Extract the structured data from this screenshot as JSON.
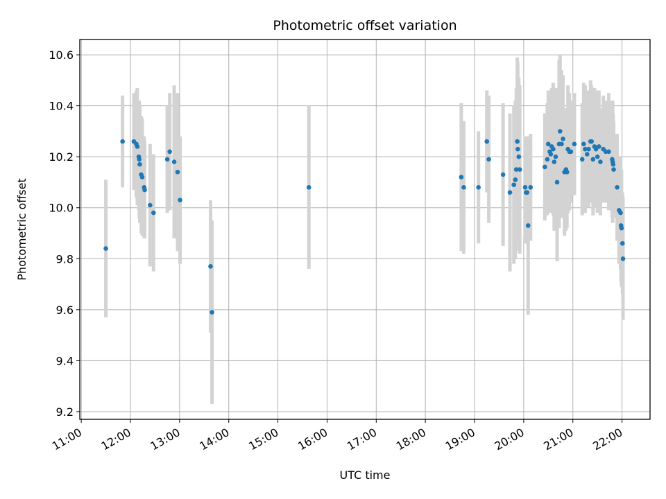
{
  "chart_data": {
    "type": "scatter",
    "title": "Photometric offset variation",
    "xlabel": "UTC time",
    "ylabel": "Photometric offset",
    "x_unit": "hour",
    "xlim": [
      10.97,
      22.57
    ],
    "ylim": [
      9.17,
      10.66
    ],
    "x_ticks": [
      11,
      12,
      13,
      14,
      15,
      16,
      17,
      18,
      19,
      20,
      21,
      22
    ],
    "x_tick_labels": [
      "11:00",
      "12:00",
      "13:00",
      "14:00",
      "15:00",
      "16:00",
      "17:00",
      "18:00",
      "19:00",
      "20:00",
      "21:00",
      "22:00"
    ],
    "y_ticks": [
      9.2,
      9.4,
      9.6,
      9.8,
      10.0,
      10.2,
      10.4,
      10.6
    ],
    "y_tick_labels": [
      "9.2",
      "9.4",
      "9.6",
      "9.8",
      "10.0",
      "10.2",
      "10.4",
      "10.6"
    ],
    "grid": true,
    "colors": {
      "point": "#1f77b4",
      "errorbar": "#d3d3d3",
      "grid": "#b0b0b0"
    },
    "series": [
      {
        "points": [
          [
            11.5,
            9.84,
            0.27
          ],
          [
            11.84,
            10.26,
            0.18
          ],
          [
            12.07,
            10.26,
            0.19
          ],
          [
            12.12,
            10.25,
            0.21
          ],
          [
            12.14,
            10.24,
            0.23
          ],
          [
            12.17,
            10.2,
            0.21
          ],
          [
            12.18,
            10.19,
            0.23
          ],
          [
            12.19,
            10.17,
            0.23
          ],
          [
            12.22,
            10.13,
            0.23
          ],
          [
            12.24,
            10.12,
            0.23
          ],
          [
            12.28,
            10.08,
            0.2
          ],
          [
            12.29,
            10.07,
            0.19
          ],
          [
            12.4,
            10.01,
            0.24
          ],
          [
            12.47,
            9.98,
            0.23
          ],
          [
            12.75,
            10.19,
            0.21
          ],
          [
            12.8,
            10.22,
            0.23
          ],
          [
            12.89,
            10.18,
            0.3
          ],
          [
            12.96,
            10.14,
            0.31
          ],
          [
            13.01,
            10.03,
            0.25
          ],
          [
            13.63,
            9.77,
            0.26
          ],
          [
            13.66,
            9.59,
            0.36
          ],
          [
            15.63,
            10.08,
            0.32
          ],
          [
            18.73,
            10.12,
            0.29
          ],
          [
            18.78,
            10.08,
            0.26
          ],
          [
            19.08,
            10.08,
            0.22
          ],
          [
            19.25,
            10.26,
            0.2
          ],
          [
            19.29,
            10.19,
            0.25
          ],
          [
            19.58,
            10.13,
            0.28
          ],
          [
            19.72,
            10.06,
            0.31
          ],
          [
            19.8,
            10.09,
            0.31
          ],
          [
            19.83,
            10.11,
            0.31
          ],
          [
            19.85,
            10.15,
            0.32
          ],
          [
            19.87,
            10.26,
            0.33
          ],
          [
            19.88,
            10.23,
            0.34
          ],
          [
            19.9,
            10.2,
            0.31
          ],
          [
            19.92,
            10.15,
            0.33
          ],
          [
            20.03,
            10.08,
            0.2
          ],
          [
            20.05,
            10.06,
            0.2
          ],
          [
            20.07,
            10.06,
            0.2
          ],
          [
            20.09,
            9.93,
            0.35
          ],
          [
            20.14,
            10.08,
            0.21
          ],
          [
            20.43,
            10.16,
            0.21
          ],
          [
            20.48,
            10.19,
            0.22
          ],
          [
            20.5,
            10.25,
            0.21
          ],
          [
            20.53,
            10.22,
            0.23
          ],
          [
            20.55,
            10.21,
            0.23
          ],
          [
            20.57,
            10.24,
            0.23
          ],
          [
            20.6,
            10.23,
            0.26
          ],
          [
            20.62,
            10.18,
            0.27
          ],
          [
            20.65,
            10.2,
            0.27
          ],
          [
            20.68,
            10.1,
            0.31
          ],
          [
            20.72,
            10.25,
            0.33
          ],
          [
            20.74,
            10.3,
            0.3
          ],
          [
            20.77,
            10.25,
            0.29
          ],
          [
            20.8,
            10.27,
            0.25
          ],
          [
            20.83,
            10.14,
            0.25
          ],
          [
            20.86,
            10.15,
            0.24
          ],
          [
            20.88,
            10.14,
            0.22
          ],
          [
            20.9,
            10.23,
            0.25
          ],
          [
            20.93,
            10.22,
            0.23
          ],
          [
            20.96,
            10.22,
            0.2
          ],
          [
            21.03,
            10.25,
            0.2
          ],
          [
            21.19,
            10.19,
            0.22
          ],
          [
            21.22,
            10.25,
            0.24
          ],
          [
            21.25,
            10.23,
            0.25
          ],
          [
            21.29,
            10.21,
            0.2
          ],
          [
            21.32,
            10.23,
            0.23
          ],
          [
            21.36,
            10.26,
            0.24
          ],
          [
            21.38,
            10.26,
            0.22
          ],
          [
            21.41,
            10.19,
            0.22
          ],
          [
            21.44,
            10.24,
            0.23
          ],
          [
            21.47,
            10.23,
            0.23
          ],
          [
            21.5,
            10.2,
            0.22
          ],
          [
            21.53,
            10.24,
            0.22
          ],
          [
            21.56,
            10.18,
            0.21
          ],
          [
            21.62,
            10.23,
            0.21
          ],
          [
            21.67,
            10.22,
            0.2
          ],
          [
            21.73,
            10.22,
            0.23
          ],
          [
            21.8,
            10.19,
            0.23
          ],
          [
            21.81,
            10.18,
            0.24
          ],
          [
            21.82,
            10.17,
            0.2
          ],
          [
            21.83,
            10.15,
            0.19
          ],
          [
            21.9,
            10.08,
            0.21
          ],
          [
            21.94,
            9.99,
            0.21
          ],
          [
            21.97,
            9.98,
            0.22
          ],
          [
            21.98,
            9.93,
            0.22
          ],
          [
            21.99,
            9.92,
            0.23
          ],
          [
            22.01,
            9.86,
            0.2
          ],
          [
            22.02,
            9.8,
            0.24
          ]
        ]
      }
    ]
  }
}
